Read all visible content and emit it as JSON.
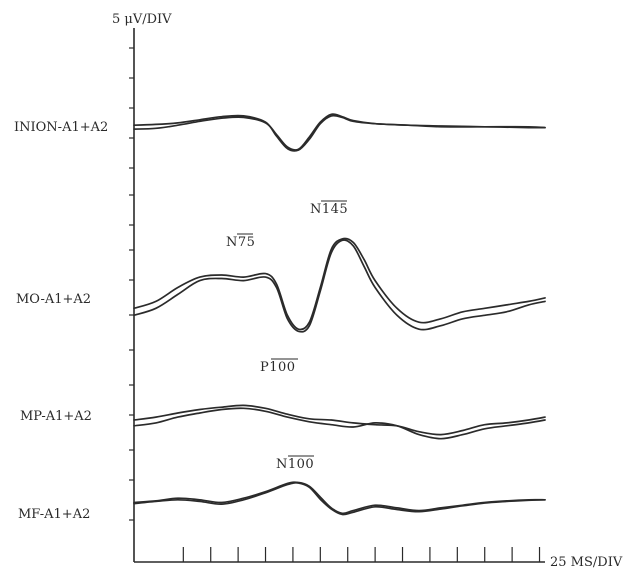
{
  "chart_data": {
    "type": "line",
    "title": "",
    "ylabel": "5 μV/DIV",
    "xlabel": "25 MS/DIV",
    "grid": false,
    "legend": "none",
    "x_unit_ms": 25,
    "xlim": [
      -20,
      355
    ],
    "channels": [
      {
        "name": "INION-A1+A2",
        "ylim": [
          -5.5,
          3.5
        ],
        "series": [
          {
            "x": [
              -20,
              0,
              20,
              40,
              60,
              80,
              100,
              110,
              120,
              130,
              140,
              150,
              160,
              170,
              180,
              200,
              230,
              260,
              300,
              340,
              355
            ],
            "y": [
              0.0,
              0.1,
              0.3,
              0.7,
              1.1,
              1.2,
              0.4,
              -1.4,
              -3.0,
              -3.2,
              -1.8,
              0.2,
              1.2,
              1.0,
              0.5,
              0.2,
              0.0,
              -0.1,
              -0.2,
              -0.3,
              -0.3
            ]
          },
          {
            "x": [
              -20,
              0,
              20,
              40,
              60,
              80,
              100,
              110,
              120,
              130,
              140,
              150,
              160,
              170,
              180,
              200,
              230,
              260,
              300,
              340,
              355
            ],
            "y": [
              -0.5,
              -0.4,
              0.0,
              0.5,
              0.9,
              1.0,
              0.3,
              -1.2,
              -2.8,
              -3.1,
              -1.5,
              0.4,
              1.4,
              1.1,
              0.6,
              0.2,
              0.0,
              -0.2,
              -0.2,
              -0.2,
              -0.3
            ]
          }
        ]
      },
      {
        "name": "MO-A1+A2",
        "ylim": [
          -9,
          9
        ],
        "series": [
          {
            "x": [
              -20,
              0,
              20,
              40,
              60,
              80,
              100,
              110,
              120,
              130,
              140,
              150,
              160,
              170,
              180,
              190,
              200,
              220,
              240,
              260,
              280,
              300,
              320,
              340,
              355
            ],
            "y": [
              -3.0,
              -2.0,
              0.0,
              1.5,
              1.8,
              1.5,
              2.0,
              0.5,
              -4.0,
              -6.0,
              -5.0,
              0.0,
              5.5,
              7.0,
              6.5,
              4.0,
              1.0,
              -3.0,
              -5.0,
              -4.5,
              -3.5,
              -3.0,
              -2.5,
              -2.0,
              -1.5
            ]
          },
          {
            "x": [
              -20,
              0,
              20,
              40,
              60,
              80,
              100,
              110,
              120,
              130,
              140,
              150,
              160,
              170,
              180,
              190,
              200,
              220,
              240,
              260,
              280,
              300,
              320,
              340,
              355
            ],
            "y": [
              -4.0,
              -3.0,
              -1.0,
              1.0,
              1.3,
              1.0,
              1.5,
              0.0,
              -4.5,
              -6.3,
              -5.5,
              -0.5,
              5.0,
              6.8,
              6.0,
              3.0,
              0.0,
              -4.0,
              -6.0,
              -5.5,
              -4.5,
              -4.0,
              -3.5,
              -2.5,
              -2.0
            ]
          }
        ]
      },
      {
        "name": "MP-A1+A2",
        "ylim": [
          -6,
          6
        ],
        "series": [
          {
            "x": [
              -20,
              0,
              20,
              40,
              60,
              80,
              100,
              120,
              140,
              160,
              180,
              200,
              220,
              240,
              260,
              280,
              300,
              320,
              340,
              355
            ],
            "y": [
              0.0,
              0.5,
              1.2,
              1.8,
              2.2,
              2.5,
              2.0,
              1.0,
              0.2,
              0.0,
              -0.5,
              -0.8,
              -1.0,
              -2.0,
              -2.5,
              -1.8,
              -0.8,
              -0.5,
              0.0,
              0.5
            ]
          },
          {
            "x": [
              -20,
              0,
              20,
              40,
              60,
              80,
              100,
              120,
              140,
              160,
              180,
              200,
              220,
              240,
              260,
              280,
              300,
              320,
              340,
              355
            ],
            "y": [
              -1.0,
              -0.5,
              0.5,
              1.2,
              1.8,
              2.0,
              1.5,
              0.5,
              -0.3,
              -0.8,
              -1.2,
              -0.5,
              -1.0,
              -2.5,
              -3.2,
              -2.5,
              -1.5,
              -1.0,
              -0.5,
              0.0
            ]
          }
        ]
      },
      {
        "name": "MF-A1+A2",
        "ylim": [
          -6,
          6
        ],
        "series": [
          {
            "x": [
              -20,
              0,
              20,
              40,
              60,
              80,
              100,
              120,
              130,
              140,
              150,
              160,
              170,
              180,
              200,
              220,
              240,
              260,
              280,
              300,
              320,
              340,
              355
            ],
            "y": [
              0.0,
              0.3,
              0.8,
              0.5,
              0.0,
              0.8,
              2.0,
              3.5,
              3.7,
              3.0,
              1.0,
              -1.0,
              -2.0,
              -1.5,
              -0.5,
              -1.0,
              -1.5,
              -1.0,
              -0.5,
              0.0,
              0.3,
              0.5,
              0.5
            ]
          },
          {
            "x": [
              -20,
              0,
              20,
              40,
              60,
              80,
              100,
              120,
              130,
              140,
              150,
              160,
              170,
              180,
              200,
              220,
              240,
              260,
              280,
              300,
              320,
              340,
              355
            ],
            "y": [
              -0.2,
              0.2,
              0.5,
              0.2,
              -0.3,
              0.5,
              1.8,
              3.3,
              3.6,
              2.8,
              0.6,
              -1.2,
              -2.2,
              -1.8,
              -0.8,
              -1.3,
              -1.7,
              -1.2,
              -0.6,
              -0.1,
              0.2,
              0.4,
              0.5
            ]
          }
        ]
      }
    ],
    "annotations": [
      {
        "text": "N75",
        "x": 75
      },
      {
        "text": "N145",
        "x": 145
      },
      {
        "text": "P100",
        "x": 103
      },
      {
        "text": "N100",
        "x": 110
      }
    ]
  }
}
